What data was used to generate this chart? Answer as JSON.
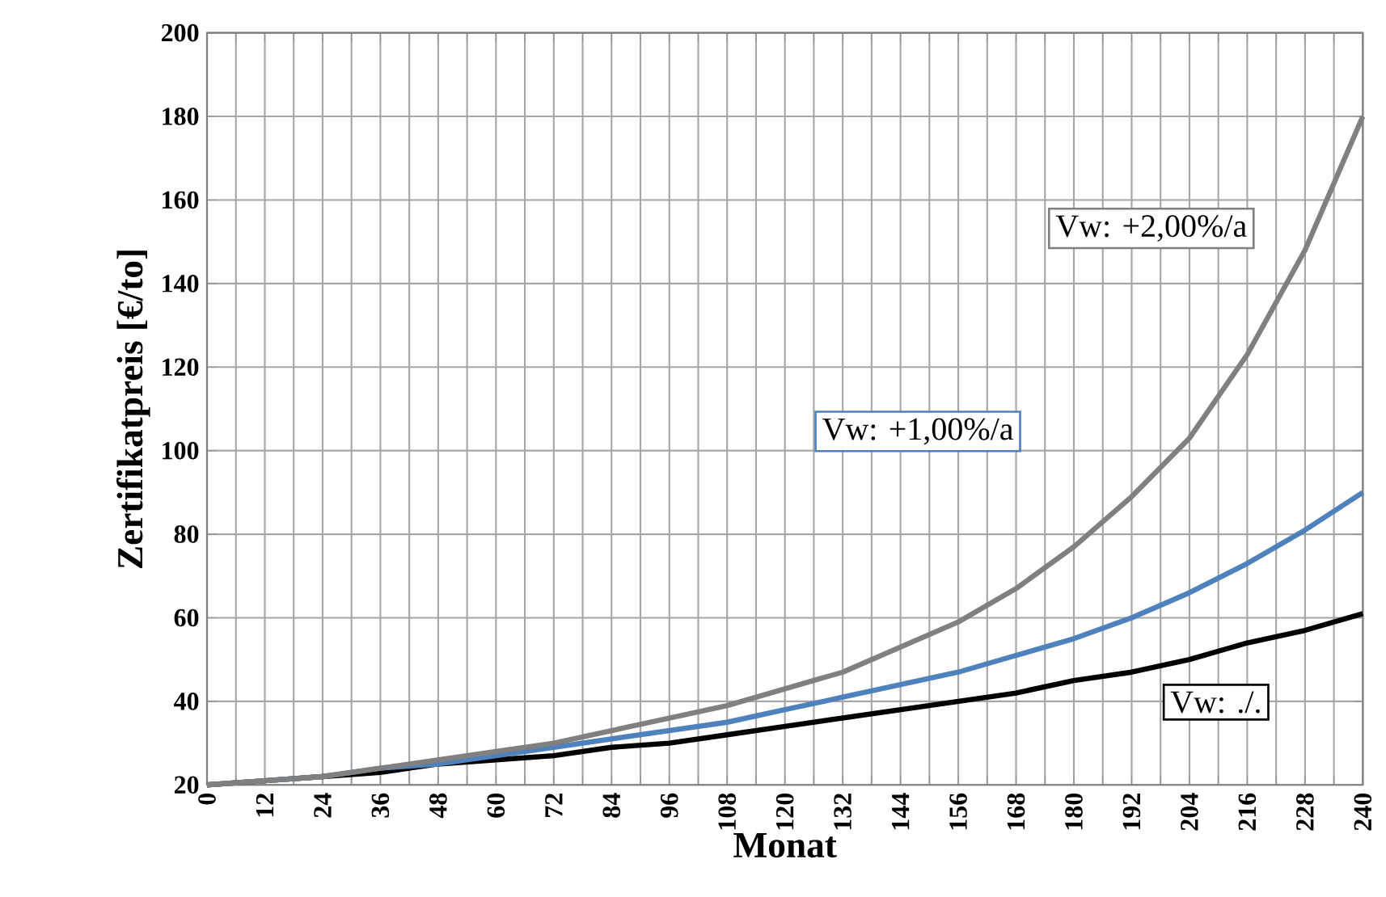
{
  "chart_data": {
    "type": "line",
    "xlabel": "Monat",
    "ylabel": "Zertifikatpreis [€/to]",
    "x": [
      0,
      12,
      24,
      36,
      48,
      60,
      72,
      84,
      96,
      108,
      120,
      132,
      144,
      156,
      168,
      180,
      192,
      204,
      216,
      228,
      240
    ],
    "series": [
      {
        "name": "Vw: ./.",
        "color": "#000000",
        "values": [
          20,
          21,
          22,
          23,
          25,
          26,
          27,
          29,
          30,
          32,
          34,
          36,
          38,
          40,
          42,
          45,
          47,
          50,
          54,
          57,
          61
        ]
      },
      {
        "name": "Vw: +1,00%/a",
        "color": "#4f81bd",
        "values": [
          20,
          21,
          22,
          24,
          25,
          27,
          29,
          31,
          33,
          35,
          38,
          41,
          44,
          47,
          51,
          55,
          60,
          66,
          73,
          81,
          90
        ]
      },
      {
        "name": "Vw: +2,00%/a",
        "color": "#808080",
        "values": [
          20,
          21,
          22,
          24,
          26,
          28,
          30,
          33,
          36,
          39,
          43,
          47,
          53,
          59,
          67,
          77,
          89,
          103,
          123,
          148,
          180
        ]
      }
    ],
    "xlim": [
      0,
      240
    ],
    "ylim": [
      20,
      200
    ],
    "xticks": [
      0,
      {
        "value": 6,
        "label": null
      },
      12,
      {
        "value": 18,
        "label": null
      },
      24,
      {
        "value": 30,
        "label": null
      },
      36,
      {
        "value": 42,
        "label": null
      },
      48,
      {
        "value": 54,
        "label": null
      },
      60,
      {
        "value": 66,
        "label": null
      },
      72,
      {
        "value": 78,
        "label": null
      },
      84,
      {
        "value": 90,
        "label": null
      },
      96,
      {
        "value": 102,
        "label": null
      },
      108,
      {
        "value": 114,
        "label": null
      },
      120,
      {
        "value": 126,
        "label": null
      },
      132,
      {
        "value": 138,
        "label": null
      },
      144,
      {
        "value": 150,
        "label": null
      },
      156,
      {
        "value": 162,
        "label": null
      },
      168,
      {
        "value": 174,
        "label": null
      },
      180,
      {
        "value": 186,
        "label": null
      },
      192,
      {
        "value": 198,
        "label": null
      },
      204,
      {
        "value": 210,
        "label": null
      },
      216,
      {
        "value": 222,
        "label": null
      },
      228,
      {
        "value": 234,
        "label": null
      },
      240
    ],
    "yticks": [
      20,
      40,
      60,
      80,
      100,
      120,
      140,
      160,
      180,
      200
    ],
    "grid": true,
    "legend": false,
    "line_style": "solid"
  }
}
